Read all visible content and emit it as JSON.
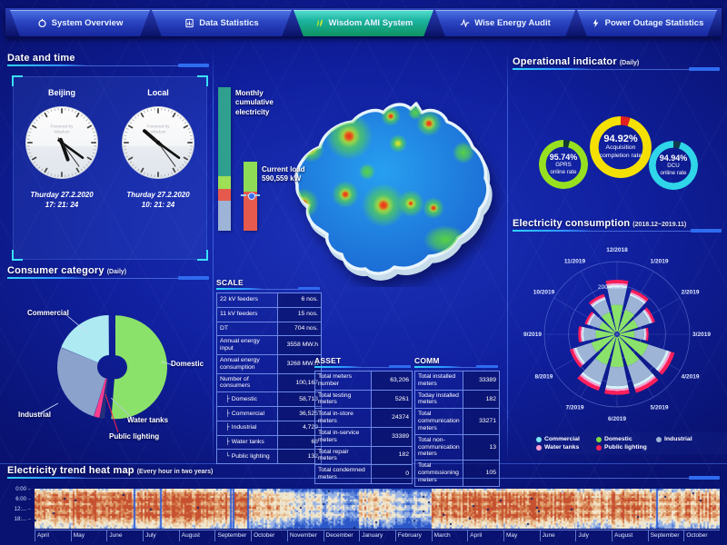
{
  "nav": {
    "active_index": 2,
    "tabs": [
      {
        "label": "System Overview",
        "icon": "overview-icon"
      },
      {
        "label": "Data Statistics",
        "icon": "database-icon"
      },
      {
        "label": "Wisdom AMI System",
        "icon": "leaf-icon"
      },
      {
        "label": "Wise Energy Audit",
        "icon": "waveform-icon"
      },
      {
        "label": "Power Outage Statistics",
        "icon": "lightning-icon"
      }
    ]
  },
  "datetime": {
    "title": "Date and time",
    "clocks": [
      {
        "city": "Beijing",
        "brand": "Powered by Wisdom",
        "date": "Thurday 27.2.2020",
        "time": "17: 21: 24",
        "hour_angle": 160.5,
        "minute_angle": 126,
        "second_angle": 144
      },
      {
        "city": "Local",
        "brand": "Powered by Wisdom",
        "date": "Thurday 27.2.2020",
        "time": "10: 21: 24",
        "hour_angle": 310.5,
        "minute_angle": 126,
        "second_angle": 144
      }
    ]
  },
  "consumer": {
    "title": "Consumer category",
    "subtitle": "(Daily)",
    "chart_data": {
      "type": "pie",
      "slices": [
        {
          "label": "Domestic",
          "pct": 51.4,
          "color": "#8be26a",
          "offset": 7
        },
        {
          "label": "Public lighting",
          "pct": 1.6,
          "color": "#25307c",
          "offset": 0
        },
        {
          "label": "Water tanks",
          "pct": 1.8,
          "color": "#ff3d8f",
          "offset": 0
        },
        {
          "label": "Industrial",
          "pct": 26.4,
          "color": "#8aa2cc",
          "offset": 0
        },
        {
          "label": "Commercial",
          "pct": 18.8,
          "color": "#aeeaf2",
          "offset": 0
        }
      ]
    }
  },
  "bars": {
    "monthly": {
      "label": "Monthly cumulative electricity",
      "segments": [
        {
          "color": "#2fa08f",
          "pct": 62
        },
        {
          "color": "#9djf55",
          "pct": 0
        },
        {
          "color": "#9ddf55",
          "pct": 9
        },
        {
          "color": "#e65a4d",
          "pct": 8
        },
        {
          "color": "#9db4d6",
          "pct": 21
        }
      ]
    },
    "current": {
      "label": "Current load",
      "value": "590,559 kW",
      "marker_pct": 47,
      "segments": [
        {
          "color": "#8edc55",
          "pct": 44
        },
        {
          "color": "#e65a4d",
          "pct": 56
        }
      ]
    }
  },
  "scale_table": {
    "title": "SCALE",
    "rows": [
      [
        "22 kV feeders",
        "6 nos."
      ],
      [
        "11 kV feeders",
        "15 nos."
      ],
      [
        "DT",
        "704 nos."
      ],
      [
        "Annual energy input",
        "3558 MW.h"
      ],
      [
        "Annual energy consumption",
        "3268 MW.h"
      ],
      [
        "Number of consumers",
        "100,167"
      ],
      [
        "├ Domestic",
        "58,713"
      ],
      [
        "├ Commercial",
        "36,525"
      ],
      [
        "├ Industrial",
        "4,729"
      ],
      [
        "├ Water tanks",
        "68"
      ],
      [
        "└ Public lighting",
        "132"
      ]
    ]
  },
  "asset_table": {
    "title": "ASSET",
    "rows": [
      [
        "Total meters number",
        "63,206"
      ],
      [
        "Total testing meters",
        "5261"
      ],
      [
        "Total in-store meters",
        "24374"
      ],
      [
        "Total in-service meters",
        "33389"
      ],
      [
        "Total repair meters",
        "182"
      ],
      [
        "Total condemned meters",
        "0"
      ]
    ]
  },
  "comm_table": {
    "title": "COMM",
    "rows": [
      [
        "Total installed meters",
        "33389"
      ],
      [
        "Today installed meters",
        "182"
      ],
      [
        "Total communication meters",
        "33271"
      ],
      [
        "Total non-communication meters",
        "13"
      ],
      [
        "Total commissioning meters",
        "105"
      ]
    ]
  },
  "operational": {
    "title": "Operational indicator",
    "subtitle": "(Daily)",
    "gauges": [
      {
        "value": "95.74%",
        "label1": "GPRS",
        "label2": "online rate",
        "color": "#97e01f",
        "gap": 4.26,
        "gap_color": "#123a30"
      },
      {
        "value": "94.92%",
        "label1": "Acquisition",
        "label2": "completion rate",
        "color": "#f5e003",
        "gap": 5.08,
        "gap_color": "#e02020"
      },
      {
        "value": "94.94%",
        "label1": "DCU",
        "label2": "online rate",
        "color": "#2fd5e8",
        "gap": 5.06,
        "gap_color": "#123a4e"
      }
    ]
  },
  "consumption": {
    "title": "Electricity consumption",
    "subtitle": "(2018.12~2019.11)",
    "radial_label": "200 MW.h",
    "chart_data": {
      "type": "rose",
      "unit": "MW.h",
      "rmax": 300,
      "grid_rings": [
        100,
        200,
        300
      ],
      "months": [
        "12/2018",
        "1/2019",
        "2/2019",
        "3/2019",
        "4/2019",
        "5/2019",
        "6/2019",
        "7/2019",
        "8/2019",
        "9/2019",
        "10/2019",
        "11/2019"
      ],
      "totals": [
        225,
        195,
        165,
        130,
        250,
        255,
        250,
        245,
        205,
        160,
        140,
        175
      ],
      "layers": [
        {
          "name": "Domestic",
          "frac": 0.52,
          "color": "#8be26a"
        },
        {
          "name": "Industrial",
          "frac": 0.33,
          "color": "#9db4d6"
        },
        {
          "name": "Commercial",
          "frac": 0.05,
          "color": "#d6f2f7"
        },
        {
          "name": "Water tanks",
          "frac": 0.035,
          "color": "#ff9fd0"
        },
        {
          "name": "Public lighting",
          "frac": 0.065,
          "color": "#ff1f5a"
        }
      ]
    },
    "legend": [
      {
        "label": "Commercial",
        "color": "#7de8f0"
      },
      {
        "label": "Domestic",
        "color": "#7ddc3f"
      },
      {
        "label": "Industrial",
        "color": "#9db4d6"
      },
      {
        "label": "Water tanks",
        "color": "#ff9fd0"
      },
      {
        "label": "Public lighting",
        "color": "#ff1f5a"
      }
    ]
  },
  "heatmap": {
    "title": "Electricity trend heat map",
    "subtitle": "(Every hour in two years)",
    "hours": [
      "0:00",
      "6:00",
      "12:...",
      "18:..."
    ],
    "dividers": [
      0.146,
      0.184,
      0.286,
      0.291,
      0.312,
      0.909
    ],
    "months": [
      {
        "name": "April",
        "warmth": 0.72
      },
      {
        "name": "May",
        "warmth": 0.78
      },
      {
        "name": "June",
        "warmth": 0.75
      },
      {
        "name": "July",
        "warmth": 0.78
      },
      {
        "name": "August",
        "warmth": 0.78
      },
      {
        "name": "September",
        "warmth": 0.72
      },
      {
        "name": "October",
        "warmth": 0.55
      },
      {
        "name": "November",
        "warmth": 0.4
      },
      {
        "name": "December",
        "warmth": 0.28
      },
      {
        "name": "January",
        "warmth": 0.5
      },
      {
        "name": "February",
        "warmth": 0.3
      },
      {
        "name": "March",
        "warmth": 0.72
      },
      {
        "name": "April",
        "warmth": 0.75
      },
      {
        "name": "May",
        "warmth": 0.78
      },
      {
        "name": "June",
        "warmth": 0.72
      },
      {
        "name": "July",
        "warmth": 0.65
      },
      {
        "name": "August",
        "warmth": 0.75
      },
      {
        "name": "September",
        "warmth": 0.6
      },
      {
        "name": "October",
        "warmth": 0.68
      }
    ]
  },
  "colors": {
    "accent_cyan": "#2fd4ff",
    "panel_line": "#2e6cf0",
    "active_tab": "#1cb4a0",
    "map_sea": "#1a64d0"
  }
}
